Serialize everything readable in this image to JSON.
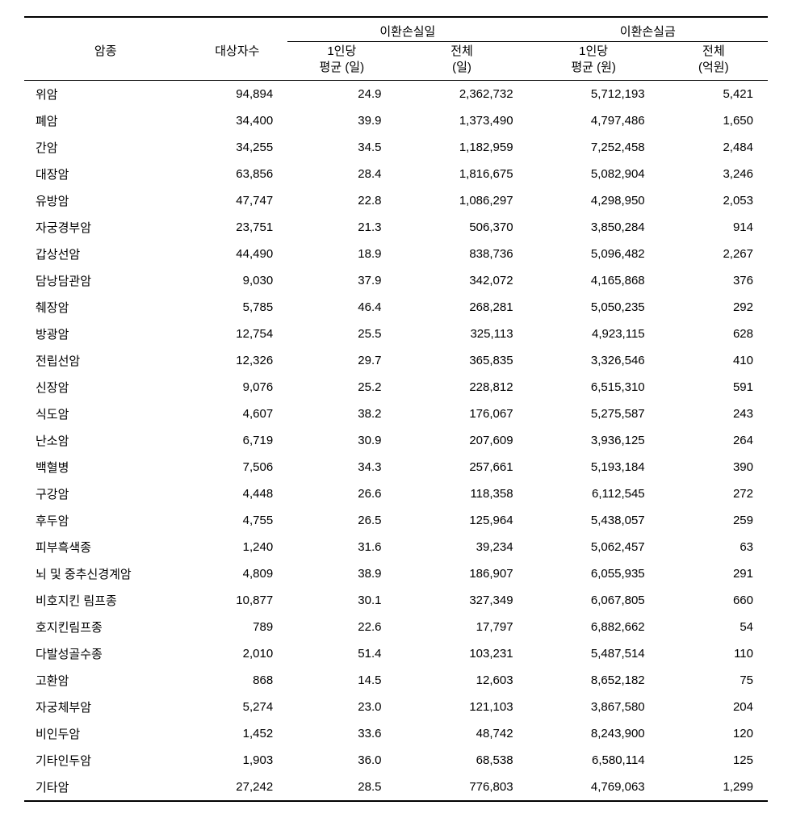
{
  "table": {
    "type": "table",
    "background_color": "#ffffff",
    "text_color": "#000000",
    "border_color": "#000000",
    "font_size_pt": 11,
    "header": {
      "col1": "암종",
      "col2": "대상자수",
      "group1": "이환손실일",
      "group2": "이환손실금",
      "sub_g1_c1_line1": "1인당",
      "sub_g1_c1_line2": "평균 (일)",
      "sub_g1_c2_line1": "전체",
      "sub_g1_c2_line2": "(일)",
      "sub_g2_c1_line1": "1인당",
      "sub_g2_c1_line2": "평균 (원)",
      "sub_g2_c2_line1": "전체",
      "sub_g2_c2_line2": "(억원)"
    },
    "rows": [
      {
        "name": "위암",
        "subjects": "94,894",
        "days_per": "24.9",
        "days_total": "2,362,732",
        "won_per": "5,712,193",
        "won_total": "5,421"
      },
      {
        "name": "폐암",
        "subjects": "34,400",
        "days_per": "39.9",
        "days_total": "1,373,490",
        "won_per": "4,797,486",
        "won_total": "1,650"
      },
      {
        "name": "간암",
        "subjects": "34,255",
        "days_per": "34.5",
        "days_total": "1,182,959",
        "won_per": "7,252,458",
        "won_total": "2,484"
      },
      {
        "name": "대장암",
        "subjects": "63,856",
        "days_per": "28.4",
        "days_total": "1,816,675",
        "won_per": "5,082,904",
        "won_total": "3,246"
      },
      {
        "name": "유방암",
        "subjects": "47,747",
        "days_per": "22.8",
        "days_total": "1,086,297",
        "won_per": "4,298,950",
        "won_total": "2,053"
      },
      {
        "name": "자궁경부암",
        "subjects": "23,751",
        "days_per": "21.3",
        "days_total": "506,370",
        "won_per": "3,850,284",
        "won_total": "914"
      },
      {
        "name": "갑상선암",
        "subjects": "44,490",
        "days_per": "18.9",
        "days_total": "838,736",
        "won_per": "5,096,482",
        "won_total": "2,267"
      },
      {
        "name": "담낭담관암",
        "subjects": "9,030",
        "days_per": "37.9",
        "days_total": "342,072",
        "won_per": "4,165,868",
        "won_total": "376"
      },
      {
        "name": "췌장암",
        "subjects": "5,785",
        "days_per": "46.4",
        "days_total": "268,281",
        "won_per": "5,050,235",
        "won_total": "292"
      },
      {
        "name": "방광암",
        "subjects": "12,754",
        "days_per": "25.5",
        "days_total": "325,113",
        "won_per": "4,923,115",
        "won_total": "628"
      },
      {
        "name": "전립선암",
        "subjects": "12,326",
        "days_per": "29.7",
        "days_total": "365,835",
        "won_per": "3,326,546",
        "won_total": "410"
      },
      {
        "name": "신장암",
        "subjects": "9,076",
        "days_per": "25.2",
        "days_total": "228,812",
        "won_per": "6,515,310",
        "won_total": "591"
      },
      {
        "name": "식도암",
        "subjects": "4,607",
        "days_per": "38.2",
        "days_total": "176,067",
        "won_per": "5,275,587",
        "won_total": "243"
      },
      {
        "name": "난소암",
        "subjects": "6,719",
        "days_per": "30.9",
        "days_total": "207,609",
        "won_per": "3,936,125",
        "won_total": "264"
      },
      {
        "name": "백혈병",
        "subjects": "7,506",
        "days_per": "34.3",
        "days_total": "257,661",
        "won_per": "5,193,184",
        "won_total": "390"
      },
      {
        "name": "구강암",
        "subjects": "4,448",
        "days_per": "26.6",
        "days_total": "118,358",
        "won_per": "6,112,545",
        "won_total": "272"
      },
      {
        "name": "후두암",
        "subjects": "4,755",
        "days_per": "26.5",
        "days_total": "125,964",
        "won_per": "5,438,057",
        "won_total": "259"
      },
      {
        "name": "피부흑색종",
        "subjects": "1,240",
        "days_per": "31.6",
        "days_total": "39,234",
        "won_per": "5,062,457",
        "won_total": "63"
      },
      {
        "name": "뇌 및 중추신경계암",
        "subjects": "4,809",
        "days_per": "38.9",
        "days_total": "186,907",
        "won_per": "6,055,935",
        "won_total": "291"
      },
      {
        "name": "비호지킨 림프종",
        "subjects": "10,877",
        "days_per": "30.1",
        "days_total": "327,349",
        "won_per": "6,067,805",
        "won_total": "660"
      },
      {
        "name": "호지킨림프종",
        "subjects": "789",
        "days_per": "22.6",
        "days_total": "17,797",
        "won_per": "6,882,662",
        "won_total": "54"
      },
      {
        "name": "다발성골수종",
        "subjects": "2,010",
        "days_per": "51.4",
        "days_total": "103,231",
        "won_per": "5,487,514",
        "won_total": "110"
      },
      {
        "name": "고환암",
        "subjects": "868",
        "days_per": "14.5",
        "days_total": "12,603",
        "won_per": "8,652,182",
        "won_total": "75"
      },
      {
        "name": "자궁체부암",
        "subjects": "5,274",
        "days_per": "23.0",
        "days_total": "121,103",
        "won_per": "3,867,580",
        "won_total": "204"
      },
      {
        "name": "비인두암",
        "subjects": "1,452",
        "days_per": "33.6",
        "days_total": "48,742",
        "won_per": "8,243,900",
        "won_total": "120"
      },
      {
        "name": "기타인두암",
        "subjects": "1,903",
        "days_per": "36.0",
        "days_total": "68,538",
        "won_per": "6,580,114",
        "won_total": "125"
      },
      {
        "name": "기타암",
        "subjects": "27,242",
        "days_per": "28.5",
        "days_total": "776,803",
        "won_per": "4,769,063",
        "won_total": "1,299"
      }
    ]
  }
}
